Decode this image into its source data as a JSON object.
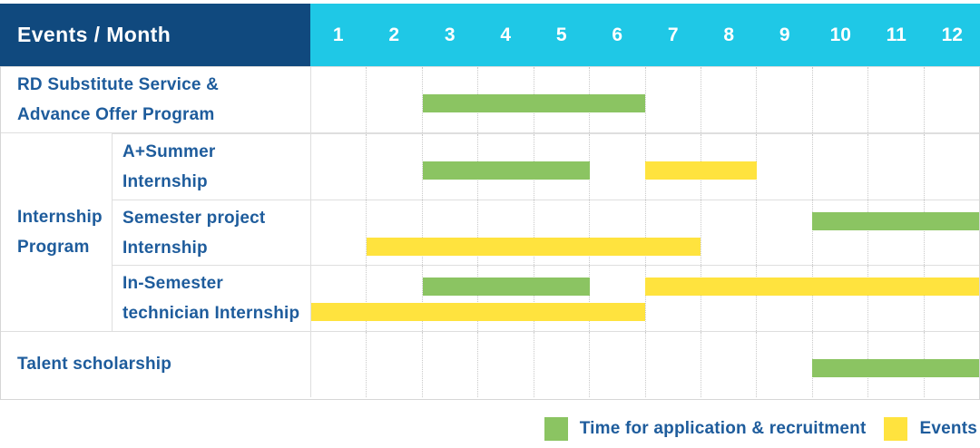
{
  "palette": {
    "navy": "#10497E",
    "cyan": "#1FC8E6",
    "green": "#8BC462",
    "yellow": "#FFE33E",
    "label_blue": "#1E5C9C"
  },
  "header": {
    "title": "Events / Month",
    "months": [
      "1",
      "2",
      "3",
      "4",
      "5",
      "6",
      "7",
      "8",
      "9",
      "10",
      "11",
      "12"
    ]
  },
  "group_label": {
    "lines": [
      "Internship",
      "Program"
    ]
  },
  "rows": [
    {
      "label_lines": [
        "RD Substitute Service &",
        "Advance Offer Program"
      ],
      "group": null,
      "lanes": [
        {
          "bars": [
            {
              "type": "green",
              "start": 3,
              "end": 6
            }
          ]
        }
      ]
    },
    {
      "label_lines": [
        "A+Summer",
        "Internship"
      ],
      "group": "internship",
      "lanes": [
        {
          "bars": [
            {
              "type": "green",
              "start": 3,
              "end": 5
            },
            {
              "type": "yellow",
              "start": 7,
              "end": 8
            }
          ]
        }
      ]
    },
    {
      "label_lines": [
        "Semester project",
        "Internship"
      ],
      "group": "internship",
      "lanes": [
        {
          "bars": [
            {
              "type": "green",
              "start": 10,
              "end": 12
            }
          ]
        },
        {
          "bars": [
            {
              "type": "yellow",
              "start": 2,
              "end": 7
            }
          ]
        }
      ]
    },
    {
      "label_lines": [
        "In-Semester",
        "technician Internship"
      ],
      "group": "internship",
      "lanes": [
        {
          "bars": [
            {
              "type": "green",
              "start": 3,
              "end": 5
            },
            {
              "type": "yellow",
              "start": 7,
              "end": 12
            }
          ]
        },
        {
          "bars": [
            {
              "type": "yellow",
              "start": 1,
              "end": 6
            }
          ]
        }
      ]
    },
    {
      "label_lines": [
        "Talent scholarship"
      ],
      "group": null,
      "lanes": [
        {
          "bars": [
            {
              "type": "green",
              "start": 10,
              "end": 12
            }
          ]
        }
      ]
    }
  ],
  "legend": [
    {
      "color": "green",
      "label": "Time for application & recruitment"
    },
    {
      "color": "yellow",
      "label": "Events"
    }
  ],
  "chart_data": {
    "type": "gantt",
    "title": "Events / Month",
    "x_unit": "month",
    "x_range": [
      1,
      12
    ],
    "x_ticks": [
      "1",
      "2",
      "3",
      "4",
      "5",
      "6",
      "7",
      "8",
      "9",
      "10",
      "11",
      "12"
    ],
    "categories": [
      "RD Substitute Service & Advance Offer Program",
      "A+Summer Internship",
      "Semester project Internship",
      "In-Semester technician Internship",
      "Talent scholarship"
    ],
    "category_group": {
      "name": "Internship Program",
      "members": [
        "A+Summer Internship",
        "Semester project Internship",
        "In-Semester technician Internship"
      ]
    },
    "series": [
      {
        "name": "Time for application & recruitment",
        "color": "#8BC462",
        "spans": [
          {
            "row": "RD Substitute Service & Advance Offer Program",
            "start_month": 3,
            "end_month": 6
          },
          {
            "row": "A+Summer Internship",
            "start_month": 3,
            "end_month": 5
          },
          {
            "row": "Semester project Internship",
            "start_month": 10,
            "end_month": 12
          },
          {
            "row": "In-Semester technician Internship",
            "start_month": 3,
            "end_month": 5
          },
          {
            "row": "Talent scholarship",
            "start_month": 10,
            "end_month": 12
          }
        ]
      },
      {
        "name": "Events",
        "color": "#FFE33E",
        "spans": [
          {
            "row": "A+Summer Internship",
            "start_month": 7,
            "end_month": 8
          },
          {
            "row": "Semester project Internship",
            "start_month": 2,
            "end_month": 7
          },
          {
            "row": "In-Semester technician Internship",
            "start_month": 7,
            "end_month": 12
          },
          {
            "row": "In-Semester technician Internship",
            "start_month": 1,
            "end_month": 6
          }
        ]
      }
    ],
    "grid": true,
    "legend_position": "bottom-right"
  }
}
